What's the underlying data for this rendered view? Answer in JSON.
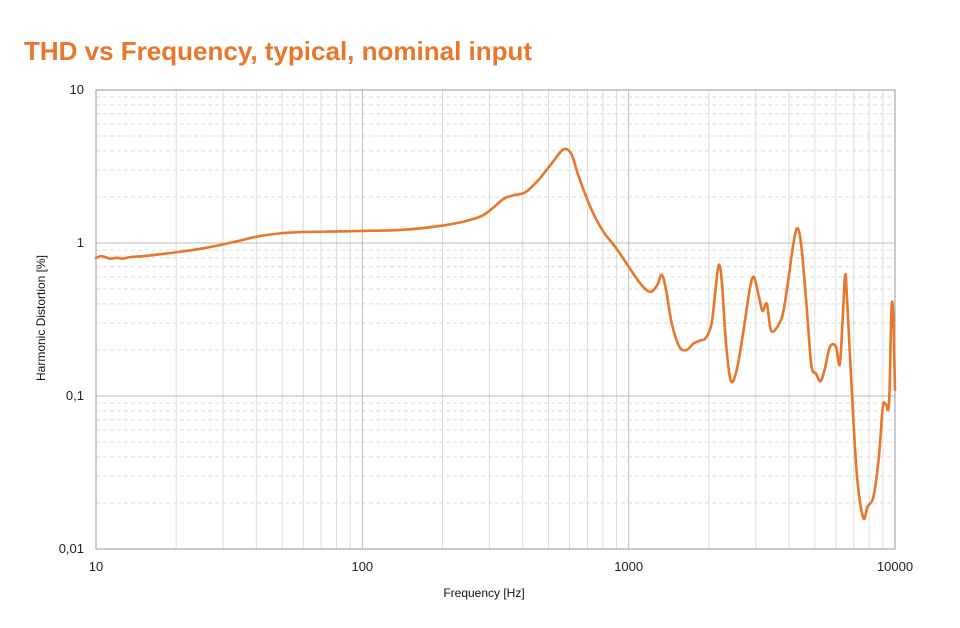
{
  "chart_data": {
    "type": "line",
    "title": "THD vs Frequency, typical, nominal input",
    "xlabel": "Frequency [Hz]",
    "ylabel": "Harmonic Distortion [%]",
    "x_scale": "log",
    "y_scale": "log",
    "xlim": [
      10,
      10000
    ],
    "ylim": [
      0.01,
      10
    ],
    "x_ticks": [
      10,
      100,
      1000,
      10000
    ],
    "x_tick_labels": [
      "10",
      "100",
      "1000",
      "10000"
    ],
    "y_ticks": [
      10,
      1,
      0.1,
      0.01
    ],
    "y_tick_labels": [
      "10",
      "1",
      "0,1",
      "0,01"
    ],
    "grid": true,
    "legend": "none",
    "series": [
      {
        "color": "#E8762B",
        "points": [
          [
            10,
            0.8
          ],
          [
            10.5,
            0.82
          ],
          [
            11.3,
            0.79
          ],
          [
            12,
            0.8
          ],
          [
            12.6,
            0.79
          ],
          [
            13.5,
            0.81
          ],
          [
            15,
            0.82
          ],
          [
            17,
            0.84
          ],
          [
            20,
            0.87
          ],
          [
            25,
            0.92
          ],
          [
            30,
            0.98
          ],
          [
            35,
            1.04
          ],
          [
            40,
            1.1
          ],
          [
            50,
            1.16
          ],
          [
            60,
            1.18
          ],
          [
            80,
            1.19
          ],
          [
            100,
            1.2
          ],
          [
            130,
            1.21
          ],
          [
            160,
            1.24
          ],
          [
            200,
            1.3
          ],
          [
            240,
            1.38
          ],
          [
            280,
            1.5
          ],
          [
            310,
            1.7
          ],
          [
            340,
            1.95
          ],
          [
            370,
            2.05
          ],
          [
            410,
            2.15
          ],
          [
            460,
            2.6
          ],
          [
            520,
            3.4
          ],
          [
            570,
            4.1
          ],
          [
            610,
            3.8
          ],
          [
            650,
            2.7
          ],
          [
            720,
            1.7
          ],
          [
            800,
            1.2
          ],
          [
            900,
            0.92
          ],
          [
            1000,
            0.7
          ],
          [
            1100,
            0.55
          ],
          [
            1200,
            0.48
          ],
          [
            1280,
            0.53
          ],
          [
            1330,
            0.62
          ],
          [
            1380,
            0.5
          ],
          [
            1450,
            0.3
          ],
          [
            1550,
            0.21
          ],
          [
            1650,
            0.2
          ],
          [
            1750,
            0.22
          ],
          [
            1850,
            0.23
          ],
          [
            1950,
            0.24
          ],
          [
            2050,
            0.3
          ],
          [
            2120,
            0.5
          ],
          [
            2180,
            0.72
          ],
          [
            2240,
            0.55
          ],
          [
            2320,
            0.22
          ],
          [
            2420,
            0.125
          ],
          [
            2550,
            0.15
          ],
          [
            2700,
            0.27
          ],
          [
            2850,
            0.5
          ],
          [
            2950,
            0.6
          ],
          [
            3080,
            0.45
          ],
          [
            3180,
            0.36
          ],
          [
            3300,
            0.4
          ],
          [
            3420,
            0.27
          ],
          [
            3600,
            0.28
          ],
          [
            3800,
            0.35
          ],
          [
            4000,
            0.62
          ],
          [
            4150,
            0.98
          ],
          [
            4300,
            1.25
          ],
          [
            4450,
            0.95
          ],
          [
            4650,
            0.4
          ],
          [
            4850,
            0.16
          ],
          [
            5050,
            0.14
          ],
          [
            5250,
            0.125
          ],
          [
            5450,
            0.15
          ],
          [
            5700,
            0.21
          ],
          [
            6000,
            0.21
          ],
          [
            6200,
            0.16
          ],
          [
            6350,
            0.3
          ],
          [
            6500,
            0.62
          ],
          [
            6620,
            0.4
          ],
          [
            6900,
            0.1
          ],
          [
            7200,
            0.03
          ],
          [
            7600,
            0.016
          ],
          [
            7900,
            0.019
          ],
          [
            8300,
            0.022
          ],
          [
            8700,
            0.04
          ],
          [
            9000,
            0.085
          ],
          [
            9250,
            0.088
          ],
          [
            9500,
            0.09
          ],
          [
            9700,
            0.37
          ],
          [
            9850,
            0.33
          ],
          [
            10000,
            0.11
          ]
        ]
      }
    ]
  }
}
